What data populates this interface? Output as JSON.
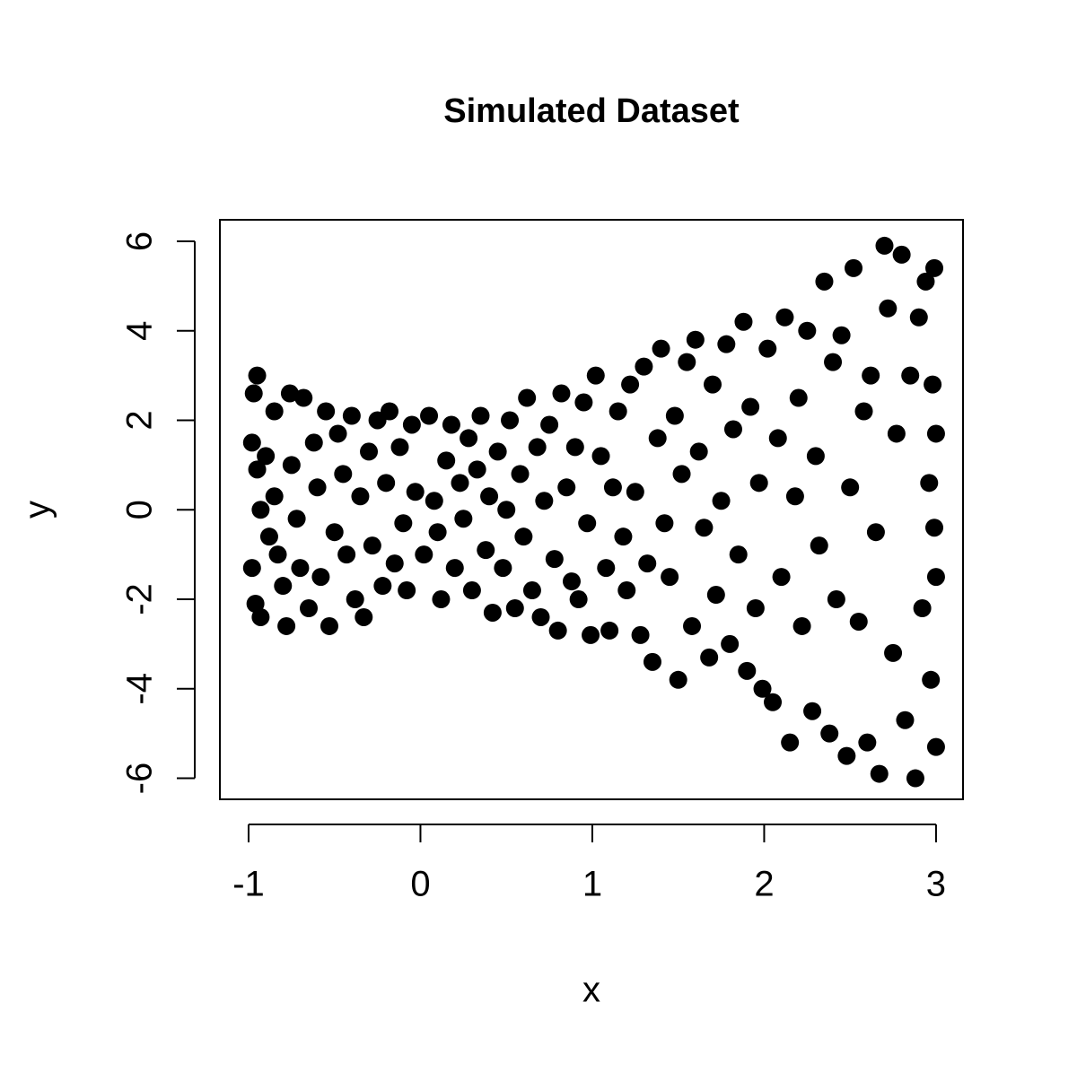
{
  "chart_data": {
    "type": "scatter",
    "title": "Simulated Dataset",
    "x_label": "x",
    "y_label": "y",
    "color": "#000000",
    "xlim": [
      -1.167,
      3.157
    ],
    "ylim": [
      -6.47,
      6.48
    ],
    "xticks": [
      -1,
      0,
      1,
      2,
      3
    ],
    "yticks": [
      -6,
      -4,
      -2,
      0,
      2,
      4,
      6
    ],
    "x": [
      -0.95,
      -0.97,
      -0.98,
      -0.95,
      -0.93,
      -0.98,
      -0.96,
      -0.93,
      -0.9,
      -0.88,
      -0.85,
      -0.85,
      -0.83,
      -0.8,
      -0.78,
      -0.76,
      -0.75,
      -0.72,
      -0.7,
      -0.68,
      -0.65,
      -0.62,
      -0.6,
      -0.58,
      -0.55,
      -0.53,
      -0.5,
      -0.48,
      -0.45,
      -0.43,
      -0.4,
      -0.38,
      -0.35,
      -0.33,
      -0.3,
      -0.28,
      -0.25,
      -0.22,
      -0.2,
      -0.18,
      -0.15,
      -0.12,
      -0.1,
      -0.08,
      -0.05,
      -0.03,
      0.02,
      0.05,
      0.08,
      0.1,
      0.12,
      0.15,
      0.18,
      0.2,
      0.23,
      0.25,
      0.28,
      0.3,
      0.33,
      0.35,
      0.38,
      0.4,
      0.42,
      0.45,
      0.48,
      0.5,
      0.52,
      0.55,
      0.58,
      0.6,
      0.62,
      0.65,
      0.68,
      0.7,
      0.72,
      0.75,
      0.78,
      0.8,
      0.82,
      0.85,
      0.88,
      0.9,
      0.92,
      0.95,
      0.97,
      0.99,
      1.02,
      1.05,
      1.08,
      1.1,
      1.12,
      1.15,
      1.18,
      1.2,
      1.22,
      1.25,
      1.28,
      1.3,
      1.32,
      1.35,
      1.38,
      1.4,
      1.42,
      1.45,
      1.48,
      1.5,
      1.52,
      1.55,
      1.58,
      1.6,
      1.62,
      1.65,
      1.68,
      1.7,
      1.72,
      1.75,
      1.78,
      1.8,
      1.82,
      1.85,
      1.88,
      1.9,
      1.92,
      1.95,
      1.97,
      1.99,
      2.02,
      2.05,
      2.08,
      2.1,
      2.12,
      2.15,
      2.18,
      2.2,
      2.22,
      2.25,
      2.28,
      2.3,
      2.32,
      2.35,
      2.38,
      2.4,
      2.42,
      2.45,
      2.48,
      2.5,
      2.52,
      2.55,
      2.58,
      2.6,
      2.62,
      2.65,
      2.67,
      2.7,
      2.72,
      2.75,
      2.77,
      2.8,
      2.82,
      2.85,
      2.88,
      2.9,
      2.92,
      2.94,
      2.96,
      2.97,
      2.98,
      2.99,
      3.0,
      3.0,
      3.0,
      2.99
    ],
    "y": [
      3.0,
      2.6,
      1.5,
      0.9,
      0.0,
      -1.3,
      -2.1,
      -2.4,
      1.2,
      -0.6,
      2.2,
      0.3,
      -1.0,
      -1.7,
      -2.6,
      2.6,
      1.0,
      -0.2,
      -1.3,
      2.5,
      -2.2,
      1.5,
      0.5,
      -1.5,
      2.2,
      -2.6,
      -0.5,
      1.7,
      0.8,
      -1.0,
      2.1,
      -2.0,
      0.3,
      -2.4,
      1.3,
      -0.8,
      2.0,
      -1.7,
      0.6,
      2.2,
      -1.2,
      1.4,
      -0.3,
      -1.8,
      1.9,
      0.4,
      -1.0,
      2.1,
      0.2,
      -0.5,
      -2.0,
      1.1,
      1.9,
      -1.3,
      0.6,
      -0.2,
      1.6,
      -1.8,
      0.9,
      2.1,
      -0.9,
      0.3,
      -2.3,
      1.3,
      -1.3,
      0.0,
      2.0,
      -2.2,
      0.8,
      -0.6,
      2.5,
      -1.8,
      1.4,
      -2.4,
      0.2,
      1.9,
      -1.1,
      -2.7,
      2.6,
      0.5,
      -1.6,
      1.4,
      -2.0,
      2.4,
      -0.3,
      -2.8,
      3.0,
      1.2,
      -1.3,
      -2.7,
      0.5,
      2.2,
      -0.6,
      -1.8,
      2.8,
      0.4,
      -2.8,
      3.2,
      -1.2,
      -3.4,
      1.6,
      3.6,
      -0.3,
      -1.5,
      2.1,
      -3.8,
      0.8,
      3.3,
      -2.6,
      3.8,
      1.3,
      -0.4,
      -3.3,
      2.8,
      -1.9,
      0.2,
      3.7,
      -3.0,
      1.8,
      -1.0,
      4.2,
      -3.6,
      2.3,
      -2.2,
      0.6,
      -4.0,
      3.6,
      -4.3,
      1.6,
      -1.5,
      4.3,
      -5.2,
      0.3,
      2.5,
      -2.6,
      4.0,
      -4.5,
      1.2,
      -0.8,
      5.1,
      -5.0,
      3.3,
      -2.0,
      3.9,
      -5.5,
      0.5,
      5.4,
      -2.5,
      2.2,
      -5.2,
      3.0,
      -0.5,
      -5.9,
      5.9,
      4.5,
      -3.2,
      1.7,
      5.7,
      -4.7,
      3.0,
      -6.0,
      4.3,
      -2.2,
      5.1,
      0.6,
      -3.8,
      2.8,
      5.4,
      -1.5,
      1.7,
      -5.3,
      -0.4
    ]
  }
}
